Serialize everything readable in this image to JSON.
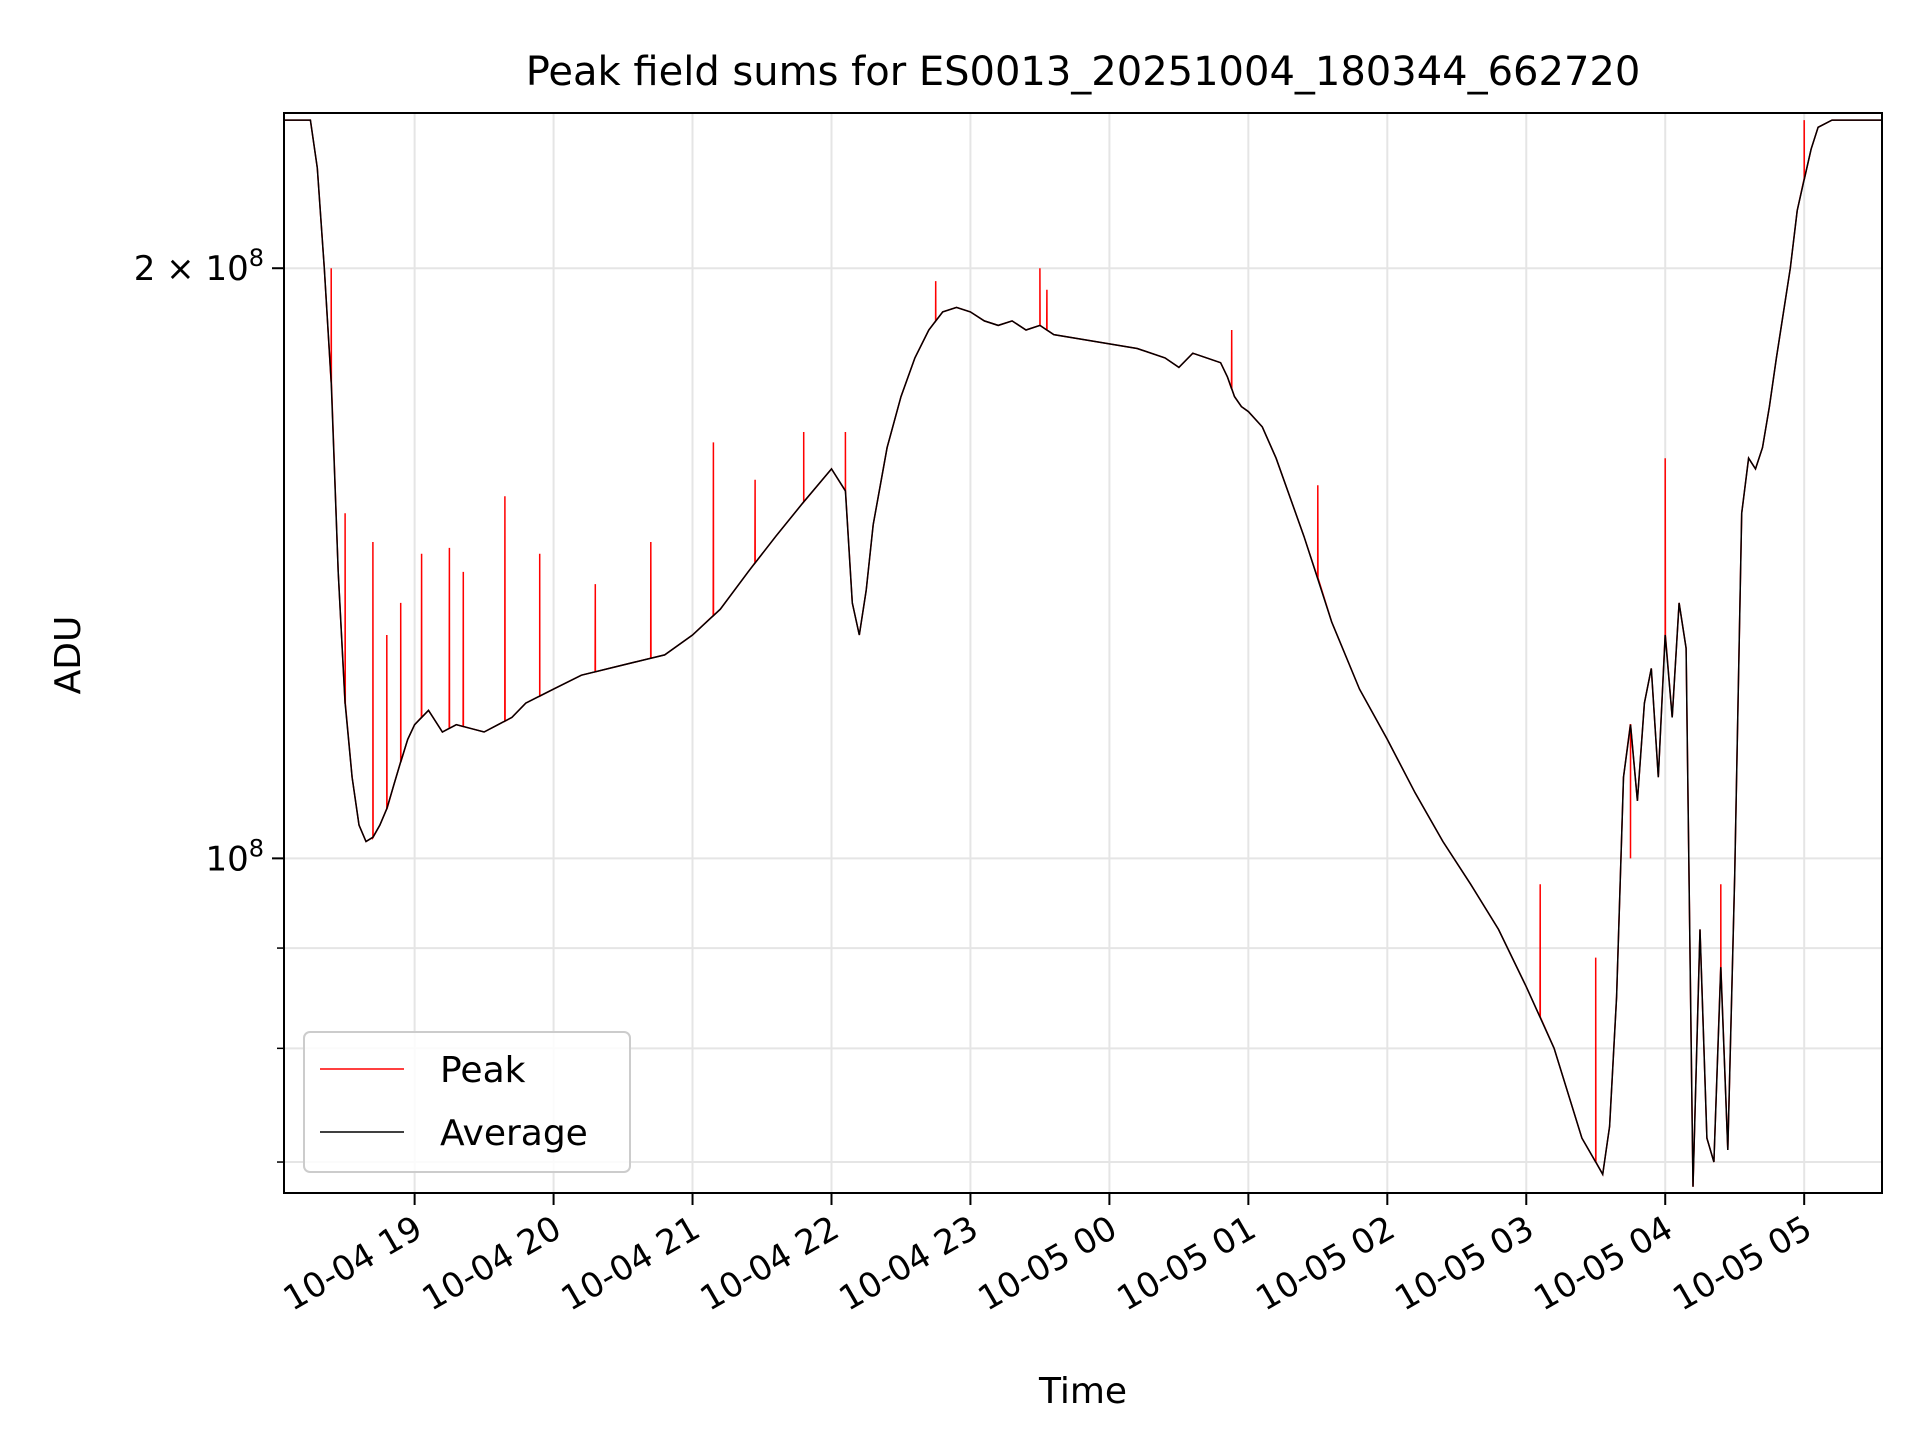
{
  "chart_data": {
    "type": "line",
    "title": "Peak field sums for ES0013_20251004_180344_662720",
    "xlabel": "Time",
    "ylabel": "ADU",
    "x_unit": "hours since 10-04 18:00",
    "xlim": [
      0.06,
      11.56
    ],
    "ylim": [
      67500000,
      240000000
    ],
    "y_scale": "log",
    "grid": true,
    "legend_position": "lower-left",
    "x_ticks": [
      {
        "value": 1,
        "label": "10-04 19"
      },
      {
        "value": 2,
        "label": "10-04 20"
      },
      {
        "value": 3,
        "label": "10-04 21"
      },
      {
        "value": 4,
        "label": "10-04 22"
      },
      {
        "value": 5,
        "label": "10-04 23"
      },
      {
        "value": 6,
        "label": "10-05 00"
      },
      {
        "value": 7,
        "label": "10-05 01"
      },
      {
        "value": 8,
        "label": "10-05 02"
      },
      {
        "value": 9,
        "label": "10-05 03"
      },
      {
        "value": 10,
        "label": "10-05 04"
      },
      {
        "value": 11,
        "label": "10-05 05"
      }
    ],
    "y_major_ticks": [
      {
        "value": 100000000,
        "base": "10",
        "exp": "8"
      },
      {
        "value": 200000000,
        "base": "2 × 10",
        "exp": "8"
      }
    ],
    "y_minor_ticks": [
      70000000,
      80000000,
      90000000
    ],
    "series": [
      {
        "name": "Average",
        "color": "#000000",
        "x": [
          0.06,
          0.25,
          0.3,
          0.35,
          0.4,
          0.45,
          0.5,
          0.55,
          0.6,
          0.65,
          0.7,
          0.75,
          0.8,
          0.85,
          0.9,
          0.95,
          1.0,
          1.1,
          1.2,
          1.3,
          1.4,
          1.5,
          1.6,
          1.7,
          1.8,
          1.9,
          2.0,
          2.2,
          2.4,
          2.6,
          2.8,
          3.0,
          3.2,
          3.4,
          3.6,
          3.8,
          4.0,
          4.1,
          4.15,
          4.2,
          4.25,
          4.3,
          4.4,
          4.5,
          4.6,
          4.7,
          4.8,
          4.9,
          5.0,
          5.1,
          5.2,
          5.3,
          5.4,
          5.5,
          5.6,
          5.8,
          6.0,
          6.2,
          6.4,
          6.5,
          6.6,
          6.7,
          6.8,
          6.85,
          6.9,
          6.95,
          7.0,
          7.1,
          7.2,
          7.4,
          7.6,
          7.8,
          8.0,
          8.2,
          8.4,
          8.6,
          8.8,
          9.0,
          9.2,
          9.4,
          9.5,
          9.55,
          9.6,
          9.65,
          9.7,
          9.75,
          9.8,
          9.85,
          9.9,
          9.95,
          10.0,
          10.05,
          10.1,
          10.15,
          10.2,
          10.25,
          10.3,
          10.35,
          10.4,
          10.45,
          10.5,
          10.55,
          10.6,
          10.65,
          10.7,
          10.75,
          10.8,
          10.9,
          10.95,
          11.0,
          11.05,
          11.1,
          11.2,
          11.3,
          11.4,
          11.5,
          11.56
        ],
        "y": [
          238000000,
          238000000,
          225000000,
          200000000,
          175000000,
          140000000,
          120000000,
          110000000,
          104000000,
          102000000,
          102500000,
          104000000,
          106000000,
          109000000,
          112000000,
          115000000,
          117000000,
          119000000,
          116000000,
          117000000,
          116500000,
          116000000,
          117000000,
          118000000,
          120000000,
          121000000,
          122000000,
          124000000,
          125000000,
          126000000,
          127000000,
          130000000,
          134000000,
          140000000,
          146000000,
          152000000,
          158000000,
          154000000,
          135000000,
          130000000,
          137000000,
          148000000,
          162000000,
          172000000,
          180000000,
          186000000,
          190000000,
          191000000,
          190000000,
          188000000,
          187000000,
          188000000,
          186000000,
          187000000,
          185000000,
          184000000,
          183000000,
          182000000,
          180000000,
          178000000,
          181000000,
          180000000,
          179000000,
          176000000,
          172000000,
          170000000,
          169000000,
          166000000,
          160000000,
          146000000,
          132000000,
          122000000,
          115000000,
          108000000,
          102000000,
          97000000,
          92000000,
          86000000,
          80000000,
          72000000,
          70000000,
          69000000,
          73000000,
          85000000,
          110000000,
          117000000,
          107000000,
          120000000,
          125000000,
          110000000,
          130000000,
          118000000,
          135000000,
          128000000,
          68000000,
          92000000,
          72000000,
          70000000,
          88000000,
          71000000,
          98000000,
          150000000,
          160000000,
          158000000,
          162000000,
          170000000,
          180000000,
          200000000,
          214000000,
          222000000,
          230000000,
          236000000,
          238000000,
          238000000,
          238000000,
          238000000,
          238000000
        ]
      },
      {
        "name": "Peak",
        "color": "#ff0000",
        "spikes": [
          {
            "x": 0.4,
            "y": 200000000
          },
          {
            "x": 0.5,
            "y": 150000000
          },
          {
            "x": 0.7,
            "y": 145000000
          },
          {
            "x": 0.8,
            "y": 130000000
          },
          {
            "x": 0.9,
            "y": 135000000
          },
          {
            "x": 1.05,
            "y": 143000000
          },
          {
            "x": 1.25,
            "y": 144000000
          },
          {
            "x": 1.35,
            "y": 140000000
          },
          {
            "x": 1.65,
            "y": 153000000
          },
          {
            "x": 1.9,
            "y": 143000000
          },
          {
            "x": 2.3,
            "y": 138000000
          },
          {
            "x": 2.7,
            "y": 145000000
          },
          {
            "x": 3.15,
            "y": 163000000
          },
          {
            "x": 3.45,
            "y": 156000000
          },
          {
            "x": 3.8,
            "y": 165000000
          },
          {
            "x": 4.1,
            "y": 165000000
          },
          {
            "x": 4.75,
            "y": 197000000
          },
          {
            "x": 5.5,
            "y": 200000000
          },
          {
            "x": 5.55,
            "y": 195000000
          },
          {
            "x": 6.88,
            "y": 186000000
          },
          {
            "x": 7.5,
            "y": 155000000
          },
          {
            "x": 9.1,
            "y": 97000000
          },
          {
            "x": 9.5,
            "y": 89000000
          },
          {
            "x": 9.75,
            "y": 100000000
          },
          {
            "x": 10.0,
            "y": 160000000
          },
          {
            "x": 10.4,
            "y": 97000000
          },
          {
            "x": 11.0,
            "y": 238000000
          }
        ]
      }
    ]
  },
  "legend": {
    "items": [
      {
        "label": "Peak",
        "color": "#ff0000"
      },
      {
        "label": "Average",
        "color": "#000000"
      }
    ]
  }
}
